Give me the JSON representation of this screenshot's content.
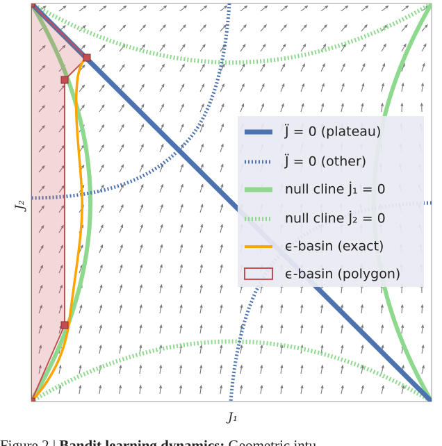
{
  "figure": {
    "x_label": "J₁",
    "y_label": "J₂",
    "legend": [
      "J̈ = 0 (plateau)",
      "J̈ = 0 (other)",
      "null cline J̇₁ = 0",
      "null cline J̇₂ = 0",
      "ϵ-basin (exact)",
      "ϵ-basin (polygon)"
    ],
    "caption": {
      "label": "Figure 2 | ",
      "title": "Bandit learning dynamics:",
      "text": " Geometric intu-"
    }
  }
}
